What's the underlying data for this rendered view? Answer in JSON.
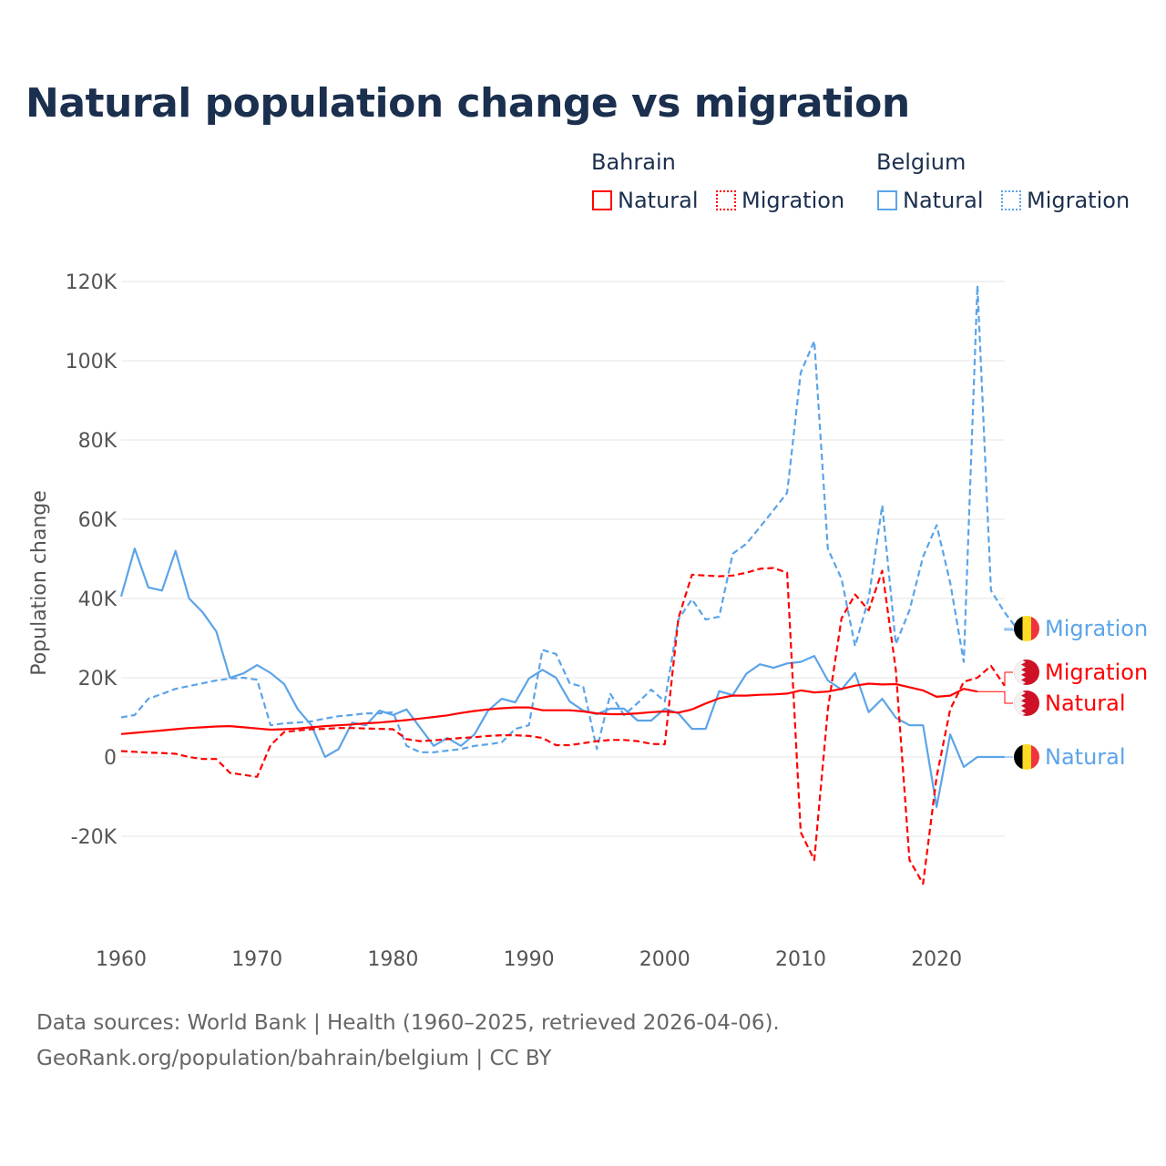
{
  "chart_data": {
    "type": "line",
    "title": "Natural population change vs migration",
    "ylabel": "Population change",
    "xlabel": "",
    "xlim": [
      1960,
      2025
    ],
    "ylim": [
      -35000,
      120000
    ],
    "grid": true,
    "x_ticks": [
      1960,
      1970,
      1980,
      1990,
      2000,
      2010,
      2020
    ],
    "x_tick_labels": [
      "1960",
      "1970",
      "1980",
      "1990",
      "2000",
      "2010",
      "2020"
    ],
    "y_ticks": [
      -20000,
      0,
      20000,
      40000,
      60000,
      80000,
      100000,
      120000
    ],
    "y_tick_labels": [
      "-20K",
      "0",
      "20K",
      "40K",
      "60K",
      "80K",
      "100K",
      "120K"
    ],
    "legend": {
      "placement": "top-right",
      "groups": [
        {
          "country": "Bahrain",
          "items": [
            "Natural",
            "Migration"
          ]
        },
        {
          "country": "Belgium",
          "items": [
            "Natural",
            "Migration"
          ]
        }
      ]
    },
    "colors": {
      "Bahrain": "#ff0000",
      "Belgium": "#5ba4e8"
    },
    "series": [
      {
        "name": "Bahrain Natural",
        "country": "Bahrain",
        "kind": "Natural",
        "start_year": 1960,
        "end_label": "Natural",
        "values": [
          5800,
          6100,
          6400,
          6700,
          7000,
          7300,
          7500,
          7700,
          7800,
          7500,
          7200,
          6900,
          7000,
          7200,
          7500,
          7800,
          8000,
          8200,
          8500,
          8700,
          9000,
          9300,
          9700,
          10100,
          10500,
          11100,
          11600,
          12000,
          12300,
          12500,
          12500,
          11800,
          11800,
          11800,
          11500,
          11000,
          10800,
          10800,
          11000,
          11300,
          11500,
          11200,
          12000,
          13500,
          14800,
          15500,
          15500,
          15700,
          15800,
          16000,
          16800,
          16300,
          16500,
          17200,
          18000,
          18500,
          18300,
          18400,
          17600,
          16800,
          15200,
          15500,
          17200,
          16500
        ]
      },
      {
        "name": "Bahrain Migration",
        "country": "Bahrain",
        "kind": "Migration",
        "start_year": 1960,
        "end_label": "Migration",
        "values": [
          1500,
          1300,
          1100,
          1000,
          800,
          0,
          -500,
          -500,
          -4000,
          -4500,
          -5000,
          3000,
          6300,
          6700,
          7000,
          7100,
          7300,
          7300,
          7200,
          7100,
          7000,
          4500,
          4000,
          4200,
          4500,
          4800,
          5000,
          5300,
          5500,
          5500,
          5300,
          4800,
          3000,
          3000,
          3500,
          4000,
          4300,
          4300,
          4000,
          3300,
          3200,
          35000,
          46000,
          45800,
          45600,
          45800,
          46500,
          47500,
          47700,
          46500,
          -19000,
          -26000,
          12000,
          35000,
          41000,
          37000,
          47000,
          22000,
          -26000,
          -32000,
          -5000,
          12000,
          19000,
          20000,
          23000,
          18000
        ]
      },
      {
        "name": "Belgium Natural",
        "country": "Belgium",
        "kind": "Natural",
        "start_year": 1960,
        "end_label": "Natural",
        "values": [
          40500,
          52600,
          42800,
          42000,
          52000,
          40000,
          36500,
          31700,
          20000,
          21100,
          23200,
          21200,
          18400,
          12000,
          8000,
          0,
          2000,
          8700,
          8000,
          11700,
          10600,
          12000,
          7400,
          2800,
          4800,
          2800,
          5700,
          11700,
          14700,
          13800,
          19800,
          22000,
          20000,
          14000,
          11700,
          10800,
          12200,
          12200,
          9200,
          9200,
          12200,
          11000,
          7100,
          7100,
          16600,
          15600,
          21000,
          23400,
          22500,
          23600,
          24000,
          25500,
          19300,
          17000,
          21200,
          11300,
          14700,
          9900,
          8000,
          8000,
          -12600,
          5700,
          -2500,
          0,
          0,
          0
        ]
      },
      {
        "name": "Belgium Migration",
        "country": "Belgium",
        "kind": "Migration",
        "start_year": 1960,
        "end_label": "Migration",
        "values": [
          10000,
          10600,
          14700,
          15900,
          17200,
          17900,
          18600,
          19300,
          19800,
          20000,
          19500,
          8000,
          8500,
          8700,
          9000,
          9700,
          10300,
          10600,
          11000,
          11000,
          11300,
          2800,
          1200,
          1200,
          1600,
          2000,
          2800,
          3200,
          3700,
          7100,
          8000,
          27000,
          26000,
          18600,
          17700,
          2000,
          15900,
          10600,
          13600,
          17000,
          14000,
          34700,
          39800,
          34700,
          35400,
          51300,
          53800,
          58000,
          62300,
          66700,
          97000,
          105000,
          52500,
          45000,
          28000,
          40000,
          63500,
          28500,
          37000,
          50500,
          58500,
          44000,
          24000,
          119000,
          42000,
          36500,
          32000
        ]
      }
    ]
  },
  "footer": {
    "line1": "Data sources: World Bank | Health (1960–2025, retrieved 2026-04-06).",
    "line2": "GeoRank.org/population/bahrain/belgium | CC BY"
  },
  "icons": {
    "bahrain_flag": "bahrain-flag-icon",
    "belgium_flag": "belgium-flag-icon"
  }
}
